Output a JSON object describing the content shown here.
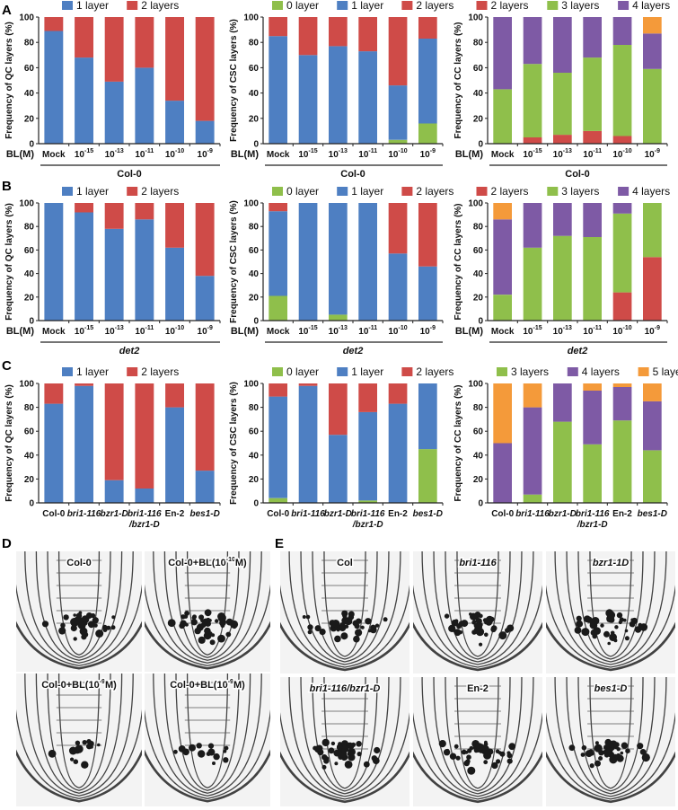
{
  "panel_letters": {
    "A": "A",
    "B": "B",
    "C": "C",
    "D": "D",
    "E": "E"
  },
  "colors": {
    "0 layer": "#8fbf4b",
    "1 layer": "#4e7fc2",
    "2 layers": "#cf4b48",
    "3 layers": "#8fbf4b",
    "4 layers": "#7e5aa5",
    "5 layers": "#f49a3a"
  },
  "row_x_prefix": {
    "A": "BL(M)",
    "B": "BL(M)"
  },
  "chart_data": [
    {
      "panel": "A",
      "type": "bar",
      "stacked": true,
      "ylabel": "Frequency of QC layers (%)",
      "ylim": [
        0,
        100
      ],
      "yticks": [
        "0",
        "20",
        "40",
        "60",
        "80",
        "100"
      ],
      "group_label": "Col-0",
      "categories": [
        "Mock",
        "10-15",
        "10-13",
        "10-11",
        "10-10",
        "10-9"
      ],
      "series": [
        {
          "name": "1 layer",
          "values": [
            89,
            68,
            49,
            60,
            34,
            18
          ]
        },
        {
          "name": "2 layers",
          "values": [
            11,
            32,
            51,
            40,
            66,
            82
          ]
        }
      ]
    },
    {
      "panel": "A",
      "type": "bar",
      "stacked": true,
      "ylabel": "Frequency of CSC layers (%)",
      "ylim": [
        0,
        100
      ],
      "yticks": [
        "0",
        "20",
        "40",
        "60",
        "80",
        "100"
      ],
      "group_label": "Col-0",
      "categories": [
        "Mock",
        "10-15",
        "10-13",
        "10-11",
        "10-10",
        "10-9"
      ],
      "series": [
        {
          "name": "0 layer",
          "values": [
            0,
            0,
            0,
            0,
            3,
            16
          ]
        },
        {
          "name": "1 layer",
          "values": [
            85,
            70,
            77,
            73,
            43,
            67
          ]
        },
        {
          "name": "2 layers",
          "values": [
            15,
            30,
            23,
            27,
            54,
            17
          ]
        }
      ]
    },
    {
      "panel": "A",
      "type": "bar",
      "stacked": true,
      "ylabel": "Frequency of CC layers (%)",
      "ylim": [
        0,
        100
      ],
      "yticks": [
        "0",
        "20",
        "40",
        "60",
        "80",
        "100"
      ],
      "group_label": "Col-0",
      "categories": [
        "Mock",
        "10-15",
        "10-13",
        "10-11",
        "10-10",
        "10-9"
      ],
      "series": [
        {
          "name": "2 layers",
          "values": [
            0,
            5,
            7,
            10,
            6,
            0
          ]
        },
        {
          "name": "3 layers",
          "values": [
            43,
            58,
            49,
            58,
            72,
            59
          ]
        },
        {
          "name": "4 layers",
          "values": [
            57,
            37,
            44,
            32,
            22,
            28
          ]
        },
        {
          "name": "5 layers",
          "values": [
            0,
            0,
            0,
            0,
            0,
            13
          ]
        }
      ]
    },
    {
      "panel": "B",
      "type": "bar",
      "stacked": true,
      "ylabel": "Frequency of QC layers (%)",
      "ylim": [
        0,
        100
      ],
      "yticks": [
        "0",
        "20",
        "40",
        "60",
        "80",
        "100"
      ],
      "group_label": "det2",
      "categories": [
        "Mock",
        "10-15",
        "10-13",
        "10-11",
        "10-10",
        "10-9"
      ],
      "series": [
        {
          "name": "1 layer",
          "values": [
            100,
            92,
            78,
            86,
            62,
            38
          ]
        },
        {
          "name": "2 layers",
          "values": [
            0,
            8,
            22,
            14,
            38,
            62
          ]
        }
      ]
    },
    {
      "panel": "B",
      "type": "bar",
      "stacked": true,
      "ylabel": "Frequency of CSC layers (%)",
      "ylim": [
        0,
        100
      ],
      "yticks": [
        "0",
        "20",
        "40",
        "60",
        "80",
        "100"
      ],
      "group_label": "det2",
      "categories": [
        "Mock",
        "10-15",
        "10-13",
        "10-11",
        "10-10",
        "10-9"
      ],
      "series": [
        {
          "name": "0 layer",
          "values": [
            21,
            0,
            5,
            0,
            0,
            0
          ]
        },
        {
          "name": "1 layer",
          "values": [
            72,
            100,
            95,
            100,
            57,
            46
          ]
        },
        {
          "name": "2 layers",
          "values": [
            7,
            0,
            0,
            0,
            43,
            54
          ]
        }
      ]
    },
    {
      "panel": "B",
      "type": "bar",
      "stacked": true,
      "ylabel": "Frequency of CC layers (%)",
      "ylim": [
        0,
        100
      ],
      "yticks": [
        "0",
        "20",
        "40",
        "60",
        "80",
        "100"
      ],
      "group_label": "det2",
      "categories": [
        "Mock",
        "10-15",
        "10-13",
        "10-11",
        "10-10",
        "10-9"
      ],
      "series": [
        {
          "name": "2 layers",
          "values": [
            0,
            0,
            0,
            0,
            24,
            54
          ]
        },
        {
          "name": "3 layers",
          "values": [
            22,
            62,
            72,
            71,
            67,
            46
          ]
        },
        {
          "name": "4 layers",
          "values": [
            64,
            38,
            28,
            29,
            9,
            0
          ]
        },
        {
          "name": "5 layers",
          "values": [
            14,
            0,
            0,
            0,
            0,
            0
          ]
        }
      ]
    },
    {
      "panel": "C",
      "type": "bar",
      "stacked": true,
      "ylabel": "Frequency of QC layers (%)",
      "ylim": [
        0,
        100
      ],
      "yticks": [
        "0",
        "20",
        "40",
        "60",
        "80",
        "100"
      ],
      "group_label": "",
      "categories": [
        "Col-0",
        "bri1-116",
        "bzr1-D",
        "bri1-116\n/bzr1-D",
        "En-2",
        "bes1-D"
      ],
      "series": [
        {
          "name": "1 layer",
          "values": [
            83,
            98,
            19,
            12,
            80,
            27
          ]
        },
        {
          "name": "2 layers",
          "values": [
            17,
            2,
            81,
            88,
            20,
            73
          ]
        }
      ]
    },
    {
      "panel": "C",
      "type": "bar",
      "stacked": true,
      "ylabel": "Frequency of CSC layers (%)",
      "ylim": [
        0,
        100
      ],
      "yticks": [
        "0",
        "20",
        "40",
        "60",
        "80",
        "100"
      ],
      "group_label": "",
      "categories": [
        "Col-0",
        "bri1-116",
        "bzr1-D",
        "bri1-116\n/bzr1-D",
        "En-2",
        "bes1-D"
      ],
      "series": [
        {
          "name": "0 layer",
          "values": [
            4,
            0,
            0,
            2,
            0,
            45
          ]
        },
        {
          "name": "1 layer",
          "values": [
            85,
            98,
            57,
            74,
            83,
            55
          ]
        },
        {
          "name": "2 layers",
          "values": [
            11,
            2,
            43,
            24,
            17,
            0
          ]
        }
      ]
    },
    {
      "panel": "C",
      "type": "bar",
      "stacked": true,
      "ylabel": "Frequency of CC layers (%)",
      "ylim": [
        0,
        100
      ],
      "yticks": [
        "0",
        "20",
        "40",
        "60",
        "80",
        "100"
      ],
      "group_label": "",
      "categories": [
        "Col-0",
        "bri1-116",
        "bzr1-D",
        "bri1-116\n/bzr1-D",
        "En-2",
        "bes1-D"
      ],
      "series": [
        {
          "name": "3 layers",
          "values": [
            0,
            7,
            68,
            49,
            69,
            44
          ]
        },
        {
          "name": "4 layers",
          "values": [
            50,
            73,
            32,
            45,
            28,
            41
          ]
        },
        {
          "name": "5 layers",
          "values": [
            50,
            20,
            0,
            6,
            3,
            15
          ]
        }
      ]
    }
  ],
  "micrographs": {
    "D": [
      "Col-0",
      "Col-0+BL(10-10M)",
      "Col-0+BL(10-9M)",
      "Col-0+BL(10-9M)"
    ],
    "E": [
      "Col",
      "bri1-116",
      "bzr1-1D",
      "bri1-116/bzr1-D",
      "En-2",
      "bes1-D"
    ]
  }
}
